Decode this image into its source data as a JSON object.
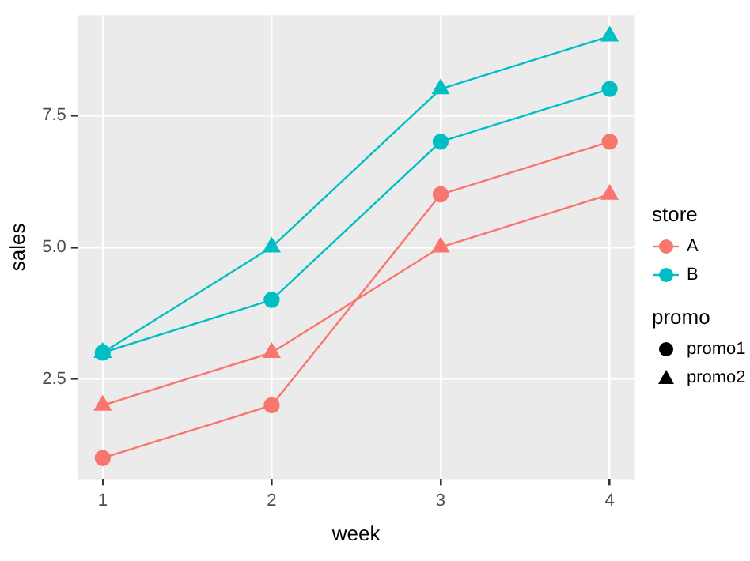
{
  "chart_data": {
    "type": "line",
    "xlabel": "week",
    "ylabel": "sales",
    "x": [
      1,
      2,
      3,
      4
    ],
    "series": [
      {
        "name": "A",
        "color": "#f8766d",
        "marker": "circle",
        "values": [
          1,
          2,
          6,
          7
        ]
      },
      {
        "color": "#f8766d",
        "marker": "triangle",
        "values": [
          2,
          3,
          5,
          6
        ]
      },
      {
        "name": "B",
        "color": "#00bfc4",
        "marker": "circle",
        "values": [
          3,
          4,
          7,
          8
        ]
      },
      {
        "color": "#00bfc4",
        "marker": "triangle",
        "values": [
          3,
          5,
          8,
          9
        ]
      }
    ],
    "xlim": [
      0.85,
      4.15
    ],
    "xticks": [
      1,
      2,
      3,
      4
    ],
    "ylim": [
      0.6,
      9.4
    ],
    "yticks": [
      2.5,
      {
        "value": 5,
        "label": "5.0"
      },
      7.5
    ],
    "grid": true,
    "legend": "right",
    "legend_title": "store",
    "annotations": [
      "promo",
      "promo1",
      "promo2"
    ]
  }
}
